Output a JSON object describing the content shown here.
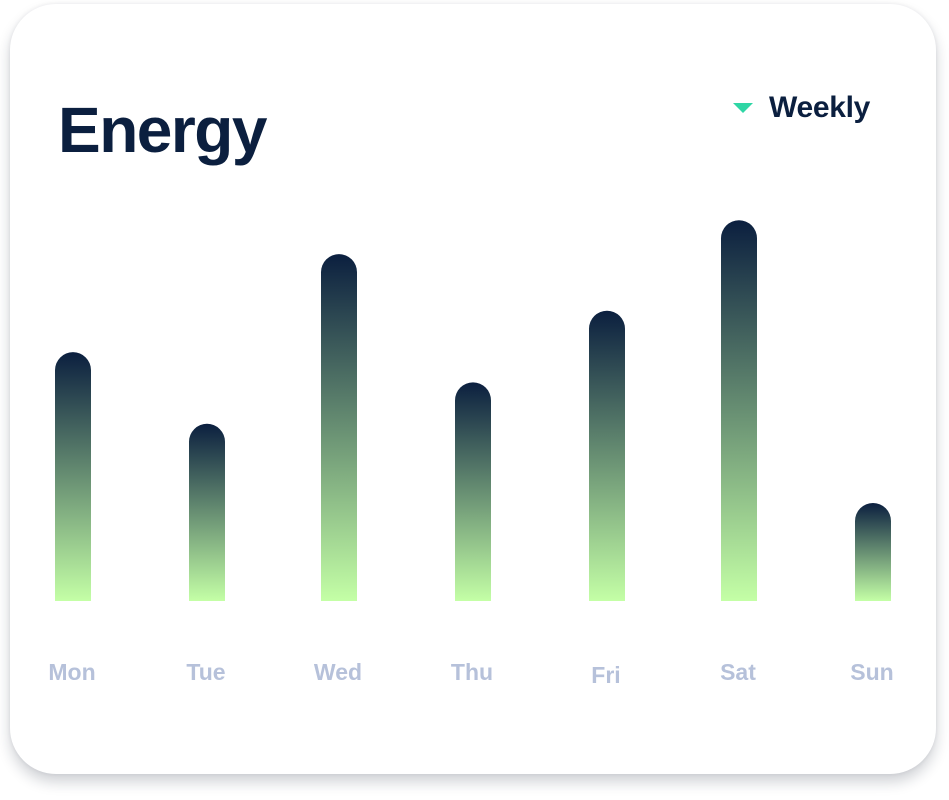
{
  "card": {
    "title": "Energy",
    "period_selector": {
      "label": "Weekly",
      "icon": "caret-down-icon",
      "icon_color": "#2fd6a5"
    }
  },
  "colors": {
    "bar_top": "#0b1f3f",
    "bar_bottom": "#c4ffa6",
    "label": "#b6c1da",
    "title": "#0b1f3f"
  },
  "chart_data": {
    "type": "bar",
    "title": "Energy",
    "xlabel": "",
    "ylabel": "",
    "categories": [
      "Mon",
      "Tue",
      "Wed",
      "Thu",
      "Fri",
      "Sat",
      "Sun"
    ],
    "values": [
      66,
      47,
      92,
      58,
      77,
      101,
      26
    ],
    "ylim": [
      0,
      105
    ],
    "grid": false,
    "legend": "none"
  }
}
